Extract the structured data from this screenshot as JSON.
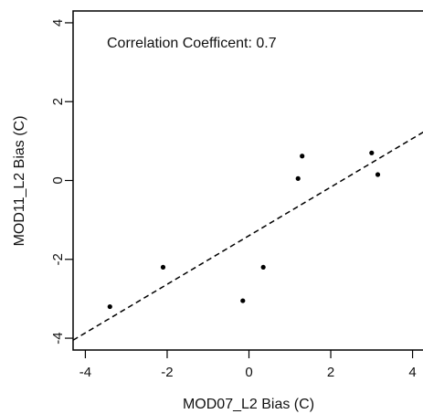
{
  "chart_data": {
    "type": "scatter",
    "xlabel": "MOD07_L2 Bias (C)",
    "ylabel": "MOD11_L2 Bias (C)",
    "xlim": [
      -4.3,
      4.3
    ],
    "ylim": [
      -4.3,
      4.3
    ],
    "x_ticks": [
      -4,
      -2,
      0,
      2,
      4
    ],
    "y_ticks": [
      -4,
      -2,
      0,
      2,
      4
    ],
    "x_tick_labels": [
      "-4",
      "-2",
      "0",
      "2",
      "4"
    ],
    "y_tick_labels": [
      "-4",
      "-2",
      "0",
      "2",
      "4"
    ],
    "grid": false,
    "annotation": "Correlation Coefficent: 0.7",
    "series": [
      {
        "points": [
          {
            "x": -3.4,
            "y": -3.2
          },
          {
            "x": -2.1,
            "y": -2.2
          },
          {
            "x": -0.15,
            "y": -3.05
          },
          {
            "x": 0.35,
            "y": -2.2
          },
          {
            "x": 1.2,
            "y": 0.05
          },
          {
            "x": 1.3,
            "y": 0.62
          },
          {
            "x": 3.0,
            "y": 0.7
          },
          {
            "x": 3.15,
            "y": 0.15
          }
        ]
      }
    ],
    "fit_line": {
      "style": "dashed",
      "points": [
        {
          "x": -4.3,
          "y": -4.05
        },
        {
          "x": 4.3,
          "y": 1.25
        }
      ]
    }
  }
}
